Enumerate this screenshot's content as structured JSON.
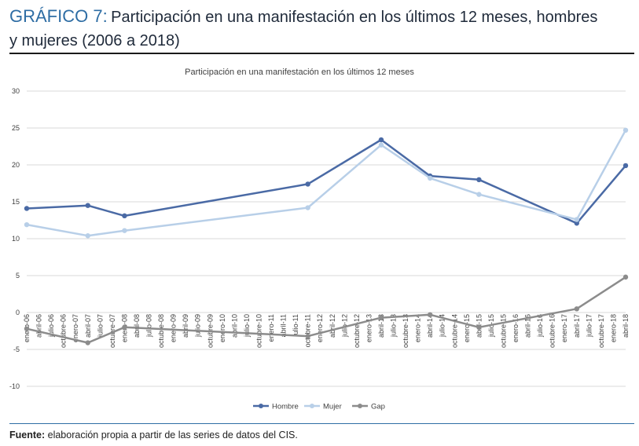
{
  "header": {
    "prefix": "GRÁFICO 7:",
    "line1": "Participación en una manifestación en los últimos 12 meses, hombres",
    "line2": "y mujeres (2006 a 2018)"
  },
  "footer": {
    "source_label": "Fuente:",
    "source_text": "elaboración propia a partir de las series de datos del CIS."
  },
  "chart_data": {
    "type": "line",
    "title": "Participación en una manifestación en los últimos 12 meses",
    "xlabel": "",
    "ylabel": "",
    "ylim": [
      -10,
      30
    ],
    "yticks": [
      30,
      25,
      20,
      15,
      10,
      5,
      0,
      -5,
      -10
    ],
    "grid": true,
    "legend": "bottom",
    "categories": [
      "enero-06",
      "abril-06",
      "julio-06",
      "octubre-06",
      "enero-07",
      "abril-07",
      "julio-07",
      "octubre-07",
      "enero-08",
      "abril-08",
      "julio-08",
      "octubre-08",
      "enero-09",
      "abril-09",
      "julio-09",
      "octubre-09",
      "enero-10",
      "abril-10",
      "julio-10",
      "octubre-10",
      "enero-11",
      "abril-11",
      "julio-11",
      "octubre-11",
      "enero-12",
      "abril-12",
      "julio-12",
      "octubre-12",
      "enero-13",
      "abril-13",
      "julio-13",
      "octubre-13",
      "enero-14",
      "abril-14",
      "julio-14",
      "octubre-14",
      "enero-15",
      "abril-15",
      "julio-15",
      "octubre-15",
      "enero-16",
      "abril-16",
      "julio-16",
      "octubre-16",
      "enero-17",
      "abril-17",
      "julio-17",
      "octubre-17",
      "enero-18",
      "abril-18"
    ],
    "series": [
      {
        "name": "Hombre",
        "color": "#4a6aa5",
        "points": [
          [
            0,
            14.1
          ],
          [
            5,
            14.5
          ],
          [
            8,
            13.1
          ],
          [
            23,
            17.4
          ],
          [
            29,
            23.4
          ],
          [
            33,
            18.5
          ],
          [
            37,
            18.0
          ],
          [
            45,
            12.1
          ],
          [
            49,
            19.9
          ]
        ]
      },
      {
        "name": "Mujer",
        "color": "#b8cfe8",
        "points": [
          [
            0,
            11.9
          ],
          [
            5,
            10.4
          ],
          [
            8,
            11.1
          ],
          [
            23,
            14.2
          ],
          [
            29,
            22.7
          ],
          [
            33,
            18.2
          ],
          [
            37,
            16.0
          ],
          [
            45,
            12.6
          ],
          [
            49,
            24.7
          ]
        ]
      },
      {
        "name": "Gap",
        "color": "#8c8c8c",
        "points": [
          [
            0,
            -2.2
          ],
          [
            5,
            -4.1
          ],
          [
            8,
            -2.0
          ],
          [
            23,
            -3.2
          ],
          [
            29,
            -0.7
          ],
          [
            33,
            -0.3
          ],
          [
            37,
            -2.0
          ],
          [
            45,
            0.5
          ],
          [
            49,
            4.8
          ]
        ]
      }
    ]
  }
}
